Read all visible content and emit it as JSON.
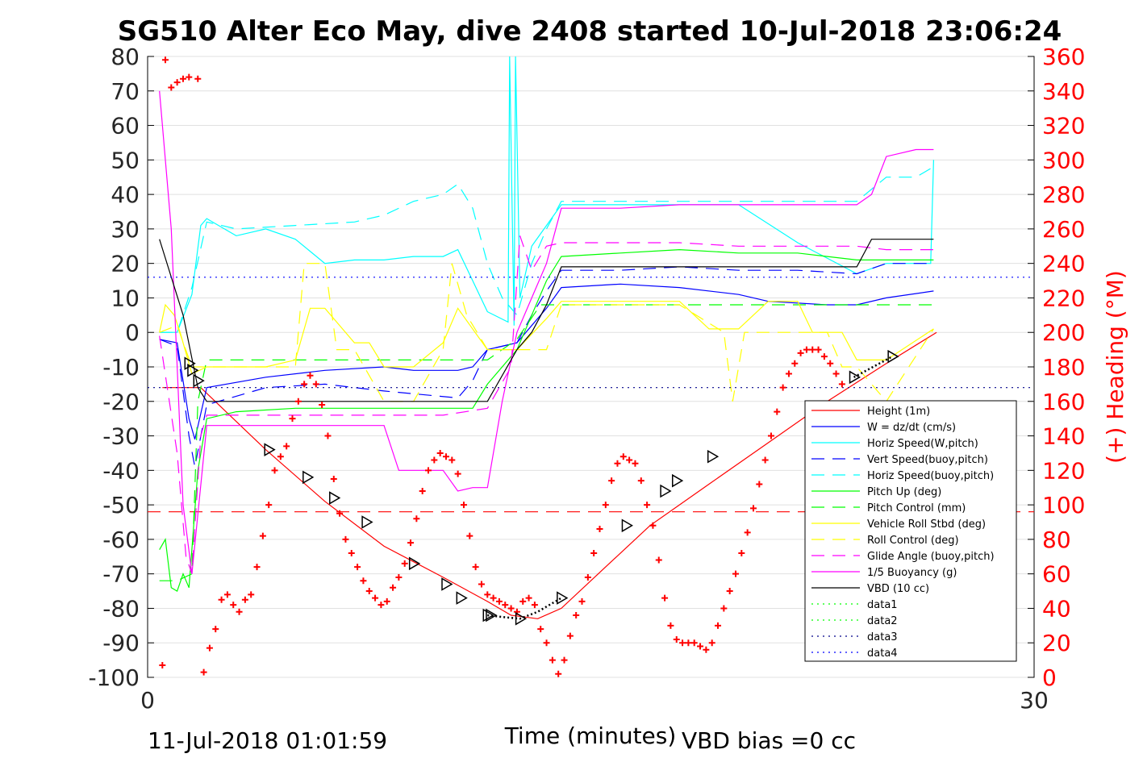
{
  "chart_data": {
    "type": "line",
    "title": "SG510 Alter Eco May, dive 2408 started 10-Jul-2018 23:06:24",
    "xlabel": "Time (minutes)",
    "ylabel_right": "(+) Heading (°M)",
    "footer_left": "11-Jul-2018 01:01:59",
    "footer_right": "VBD bias =0 cc",
    "xlim": [
      0,
      30
    ],
    "ylim": [
      -100,
      80
    ],
    "ylim_right": [
      0,
      360
    ],
    "x_ticks": [
      "0",
      "30"
    ],
    "y_ticks": [
      "80",
      "70",
      "60",
      "50",
      "40",
      "30",
      "20",
      "10",
      "0",
      "-10",
      "-20",
      "-30",
      "-40",
      "-50",
      "-60",
      "-70",
      "-80",
      "-90",
      "-100"
    ],
    "y_right_ticks": [
      "360",
      "340",
      "320",
      "300",
      "280",
      "260",
      "240",
      "220",
      "200",
      "180",
      "160",
      "140",
      "120",
      "100",
      "80",
      "60",
      "40",
      "20",
      "0"
    ],
    "grid": "horizontal",
    "legend_position": "bottom-right",
    "colors": {
      "red": "#ff0000",
      "blue": "#0000ff",
      "cyan": "#00ffff",
      "green": "#00ff00",
      "yellow": "#ffff00",
      "magenta": "#ff00ff",
      "black": "#000000",
      "darkblue": "#00008b"
    },
    "series": [
      {
        "name": "Height (1m)",
        "color": "#ff0000",
        "style": "solid",
        "x": [
          0.5,
          1.8,
          4.0,
          6.0,
          8.0,
          10.0,
          11.5,
          12.3,
          13.2,
          14.0,
          15.5,
          17.0,
          19.0,
          21.0,
          23.0,
          25.0,
          26.7
        ],
        "y": [
          -16,
          -16,
          -34,
          -49,
          -62,
          -71,
          -78,
          -82,
          -83,
          -80,
          -68,
          -56,
          -44,
          -32,
          -20,
          -9,
          0
        ]
      },
      {
        "name": "W = dz/dt (cm/s)",
        "color": "#0000ff",
        "style": "solid",
        "x": [
          0.4,
          1.0,
          1.4,
          1.6,
          2.0,
          4,
          6,
          8,
          9,
          10.5,
          11.0,
          11.5,
          12.5,
          13.0,
          13.5,
          14.0,
          16,
          18,
          20,
          21,
          23,
          24,
          25,
          26.6
        ],
        "y": [
          -2,
          -3,
          -25,
          -31,
          -16,
          -13,
          -11,
          -10,
          -11,
          -11,
          -10,
          -5,
          -3,
          2,
          7,
          13,
          14,
          13,
          11,
          9,
          8,
          8,
          10,
          12
        ]
      },
      {
        "name": "Horiz Speed(W,pitch)",
        "color": "#00ffff",
        "style": "solid",
        "x": [
          0.4,
          1.0,
          1.5,
          1.8,
          2,
          3,
          4,
          5,
          6,
          7,
          8,
          9,
          10,
          10.5,
          11.0,
          11.5,
          12.2,
          12.25,
          12.4,
          12.45,
          12.6,
          13.0,
          14.0,
          16,
          18,
          20,
          22,
          24,
          25,
          26.5,
          26.6
        ],
        "y": [
          0,
          0,
          11,
          31,
          33,
          28,
          30,
          27,
          20,
          21,
          21,
          22,
          22,
          24,
          15,
          6,
          3,
          80,
          2,
          80,
          10,
          25,
          37,
          37,
          37,
          37,
          26,
          17,
          20,
          20,
          50
        ]
      },
      {
        "name": "Vert Speed(buoy,pitch)",
        "color": "#0000ff",
        "style": "dashed",
        "x": [
          0.4,
          1.0,
          1.4,
          1.6,
          2.0,
          4,
          6,
          8,
          10.5,
          11.0,
          11.5,
          12.5,
          13.0,
          13.5,
          14.0,
          16,
          18,
          20,
          22,
          24,
          25,
          26.6
        ],
        "y": [
          -2,
          -4,
          -30,
          -39,
          -21,
          -16,
          -15,
          -17,
          -19,
          -14,
          -5,
          -3,
          5,
          12,
          18,
          18,
          19,
          18,
          18,
          17,
          20,
          20
        ]
      },
      {
        "name": "Horiz Speed(buoy,pitch)",
        "color": "#00ffff",
        "style": "dashed",
        "x": [
          0.4,
          1.0,
          1.5,
          2.0,
          3,
          5,
          7,
          8,
          9,
          10,
          10.5,
          11.0,
          11.5,
          12.0,
          12.5,
          13.0,
          13.5,
          14.0,
          16,
          18,
          20,
          22,
          24,
          25,
          26,
          26.6
        ],
        "y": [
          0,
          0,
          13,
          32,
          30,
          31,
          32,
          34,
          38,
          40,
          43,
          36,
          20,
          10,
          5,
          20,
          30,
          38,
          38,
          38,
          38,
          38,
          38,
          45,
          45,
          48
        ]
      },
      {
        "name": "Pitch Up (deg)",
        "color": "#00ff00",
        "style": "solid",
        "x": [
          0.4,
          0.6,
          0.8,
          1.0,
          1.2,
          1.4,
          1.7,
          2.0,
          3,
          5,
          7,
          9,
          11.0,
          11.5,
          12.5,
          13.0,
          13.5,
          14,
          16,
          18,
          20,
          22,
          24,
          25,
          26.6
        ],
        "y": [
          -63,
          -60,
          -74,
          -75,
          -70,
          -74,
          -40,
          -25,
          -23,
          -22,
          -22,
          -22,
          -22,
          -15,
          -5,
          5,
          15,
          22,
          23,
          24,
          23,
          23,
          21,
          21,
          21
        ]
      },
      {
        "name": "Pitch Control (mm)",
        "color": "#00ff00",
        "style": "dashed",
        "x": [
          0.4,
          1.0,
          1.5,
          1.7,
          2.0,
          11.5,
          12.5,
          13.3,
          13.5,
          26.6
        ],
        "y": [
          -72,
          -72,
          -70,
          -20,
          -8,
          -8,
          -2,
          8,
          8,
          8
        ]
      },
      {
        "name": "Vehicle Roll Stbd (deg)",
        "color": "#ffff00",
        "style": "solid",
        "x": [
          0.4,
          0.6,
          0.9,
          1.1,
          1.5,
          2,
          4,
          5,
          5.5,
          6,
          7,
          7.5,
          8,
          9,
          10.0,
          10.5,
          11.5,
          12.5,
          13.5,
          14.0,
          16,
          18,
          19,
          20,
          21,
          22,
          22.5,
          23.5,
          24,
          25,
          26.6
        ],
        "y": [
          0,
          8,
          5,
          0,
          -12,
          -10,
          -10,
          -8,
          7,
          7,
          -3,
          -3,
          -10,
          -10,
          -3,
          7,
          -5,
          -5,
          4,
          9,
          9,
          9,
          1,
          1,
          9,
          9,
          0,
          0,
          -8,
          -8,
          1
        ]
      },
      {
        "name": "Roll Control (deg)",
        "color": "#ffff00",
        "style": "dashed",
        "x": [
          0.4,
          1.0,
          1.5,
          2,
          4,
          5,
          5.3,
          5.6,
          6,
          6.4,
          7,
          8,
          9,
          10.0,
          10.3,
          10.8,
          11.5,
          13.5,
          14,
          16,
          18,
          19.5,
          19.8,
          20.2,
          21,
          23.0,
          23.5,
          24,
          25,
          26.6
        ],
        "y": [
          0,
          2,
          -10,
          -10,
          -10,
          -10,
          20,
          20,
          20,
          -5,
          -5,
          -20,
          -20,
          -5,
          20,
          5,
          -5,
          -5,
          8,
          8,
          8,
          0,
          -20,
          0,
          0,
          0,
          -10,
          -10,
          -20,
          1
        ]
      },
      {
        "name": "Glide Angle (buoy,pitch)",
        "color": "#ff00ff",
        "style": "dashed",
        "x": [
          0.4,
          1.0,
          1.3,
          1.5,
          1.8,
          2.0,
          4,
          6,
          8,
          10,
          11.5,
          12.3,
          12.6,
          13.0,
          13.5,
          14.0,
          16,
          18,
          20,
          22,
          24,
          25,
          26.6
        ],
        "y": [
          -1,
          -35,
          -65,
          -70,
          -30,
          -24,
          -24,
          -24,
          -24,
          -24,
          -22,
          -10,
          28,
          18,
          25,
          26,
          26,
          26,
          25,
          25,
          25,
          24,
          24
        ]
      },
      {
        "name": "1/5 Buoyancy (g)",
        "color": "#ff00ff",
        "style": "solid",
        "x": [
          0.4,
          0.8,
          1.2,
          1.5,
          2,
          3,
          4,
          5,
          6,
          7,
          8,
          8.5,
          9,
          10,
          10.5,
          11.0,
          11.5,
          12.0,
          12.5,
          13.0,
          13.5,
          14.0,
          16,
          18,
          20,
          22,
          24,
          24.5,
          25,
          26,
          26.6
        ],
        "y": [
          70,
          30,
          -50,
          -70,
          -27,
          -27,
          -27,
          -27,
          -27,
          -27,
          -27,
          -40,
          -40,
          -40,
          -46,
          -45,
          -45,
          -20,
          0,
          10,
          20,
          36,
          36,
          37,
          37,
          37,
          37,
          40,
          51,
          53,
          53
        ]
      },
      {
        "name": "VBD (10 cc)",
        "color": "#000000",
        "style": "solid",
        "x": [
          0.4,
          1.2,
          1.7,
          2.0,
          4,
          6,
          8,
          10,
          11.5,
          12.5,
          13.0,
          13.5,
          14.0,
          16,
          18,
          20,
          24.0,
          24.5,
          26.6
        ],
        "y": [
          27,
          5,
          -16,
          -20,
          -20,
          -20,
          -20,
          -20,
          -20,
          -5,
          0,
          8,
          19,
          19,
          19,
          19,
          19,
          27,
          27
        ]
      },
      {
        "name": "data1",
        "color": "#00ff00",
        "style": "dotted",
        "x": [],
        "y": []
      },
      {
        "name": "data2",
        "color": "#00ff00",
        "style": "dotted",
        "x": [],
        "y": []
      },
      {
        "name": "data3",
        "color": "#00008b",
        "style": "dotted",
        "x": [
          0,
          30
        ],
        "y": [
          -16,
          -16
        ]
      },
      {
        "name": "data4",
        "color": "#0000ff",
        "style": "dotted",
        "x": [
          0,
          30
        ],
        "y": [
          16,
          16
        ]
      }
    ],
    "reference_lines": [
      {
        "name": "red dashed",
        "color": "#ff0000",
        "y": -52
      }
    ],
    "heading": {
      "color": "#ff0000",
      "marker": "+",
      "x": [
        0.5,
        0.6,
        0.8,
        1.0,
        1.2,
        1.4,
        1.7,
        1.9,
        2.1,
        2.3,
        2.5,
        2.7,
        2.9,
        3.1,
        3.3,
        3.5,
        3.7,
        3.9,
        4.1,
        4.3,
        4.5,
        4.7,
        4.9,
        5.1,
        5.3,
        5.5,
        5.7,
        5.9,
        6.1,
        6.3,
        6.5,
        6.7,
        6.9,
        7.1,
        7.3,
        7.5,
        7.7,
        7.9,
        8.1,
        8.3,
        8.5,
        8.7,
        8.9,
        9.1,
        9.3,
        9.5,
        9.7,
        9.9,
        10.1,
        10.3,
        10.5,
        10.7,
        10.9,
        11.1,
        11.3,
        11.5,
        11.7,
        11.9,
        12.1,
        12.3,
        12.5,
        12.7,
        12.9,
        13.1,
        13.3,
        13.5,
        13.7,
        13.9,
        14.1,
        14.3,
        14.5,
        14.7,
        14.9,
        15.1,
        15.3,
        15.5,
        15.7,
        15.9,
        16.1,
        16.3,
        16.5,
        16.7,
        16.9,
        17.1,
        17.3,
        17.5,
        17.7,
        17.9,
        18.1,
        18.3,
        18.5,
        18.7,
        18.9,
        19.1,
        19.3,
        19.5,
        19.7,
        19.9,
        20.1,
        20.3,
        20.5,
        20.7,
        20.9,
        21.1,
        21.3,
        21.5,
        21.7,
        21.9,
        22.1,
        22.3,
        22.5,
        22.7,
        22.9,
        23.1,
        23.3,
        23.5
      ],
      "y": [
        7,
        358,
        342,
        345,
        347,
        348,
        347,
        3,
        17,
        28,
        45,
        48,
        42,
        38,
        45,
        48,
        64,
        82,
        100,
        120,
        128,
        134,
        150,
        160,
        170,
        175,
        170,
        158,
        140,
        115,
        95,
        80,
        72,
        64,
        56,
        50,
        46,
        42,
        44,
        52,
        58,
        66,
        78,
        92,
        108,
        120,
        126,
        130,
        128,
        126,
        118,
        100,
        82,
        64,
        54,
        48,
        46,
        44,
        42,
        40,
        38,
        44,
        46,
        42,
        28,
        20,
        10,
        2,
        10,
        24,
        36,
        44,
        58,
        72,
        86,
        100,
        114,
        124,
        128,
        126,
        124,
        114,
        100,
        88,
        68,
        46,
        30,
        22,
        20,
        20,
        20,
        18,
        16,
        20,
        30,
        40,
        50,
        60,
        72,
        84,
        98,
        112,
        126,
        140,
        154,
        168,
        176,
        182,
        188,
        190,
        190,
        190,
        186,
        182,
        176,
        170
      ]
    },
    "markers": {
      "type": "triangle-right",
      "color": "#000000",
      "x": [
        1.4,
        1.5,
        1.7,
        4.1,
        5.4,
        6.3,
        7.4,
        9.0,
        10.1,
        10.6,
        11.5,
        11.6,
        12.6,
        14.0,
        16.2,
        17.5,
        17.9,
        19.1,
        23.9,
        25.2
      ],
      "y": [
        -9,
        -11,
        -14,
        -34,
        -42,
        -48,
        -55,
        -67,
        -73,
        -77,
        -82,
        -82,
        -83,
        -77,
        -56,
        -46,
        -43,
        -36,
        -13,
        -7
      ]
    }
  }
}
